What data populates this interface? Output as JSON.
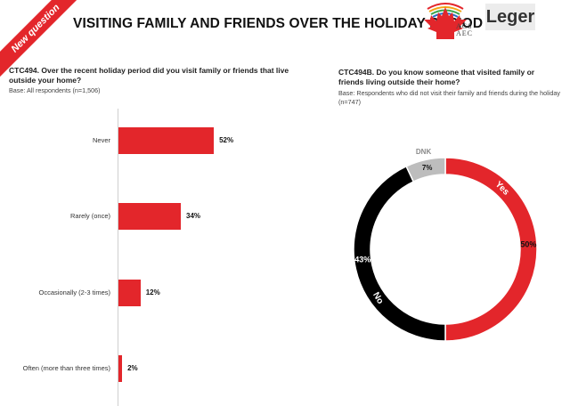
{
  "header": {
    "ribbon": "New question",
    "title": "VISITING FAMILY AND FRIENDS OVER THE HOLIDAY PERIOD",
    "logo_acs": "ACS AEC",
    "logo_leger": "Leger"
  },
  "left": {
    "question": "CTC494. Over the recent holiday period did you visit family or friends that live outside your home?",
    "base": "Base: All respondents (n=1,506)"
  },
  "right": {
    "question": "CTC494B. Do you know someone that visited family or friends living outside their home?",
    "base": "Base: Respondents who did not visit their family and friends during the holiday (n=747)"
  },
  "colors": {
    "accent": "#e3262b",
    "no": "#000000",
    "dnk": "#bdbdbd"
  },
  "chart_data": [
    {
      "type": "bar",
      "orientation": "horizontal",
      "categories": [
        "Never",
        "Rarely (once)",
        "Occasionally (2-3 times)",
        "Often (more than three times)"
      ],
      "values": [
        52,
        34,
        12,
        2
      ],
      "value_labels": [
        "52%",
        "34%",
        "12%",
        "2%"
      ],
      "unit": "%"
    },
    {
      "type": "pie",
      "variant": "donut",
      "slices": [
        {
          "label": "Yes",
          "value": 50,
          "value_label": "50%"
        },
        {
          "label": "No",
          "value": 43,
          "value_label": "43%"
        },
        {
          "label": "DNK",
          "value": 7,
          "value_label": "7%"
        }
      ]
    }
  ]
}
